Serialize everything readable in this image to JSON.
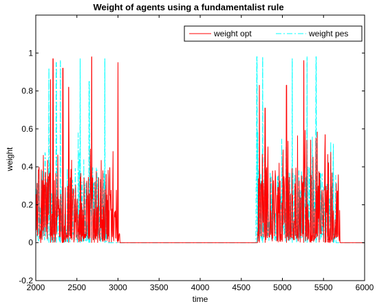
{
  "chart_data": {
    "type": "line",
    "title": "Weight of agents using a fundamentalist rule",
    "xlabel": "time",
    "ylabel": "weight",
    "xlim": [
      2000,
      6000
    ],
    "ylim": [
      -0.2,
      1.2
    ],
    "xticks": [
      2000,
      2500,
      3000,
      3500,
      4000,
      4500,
      5000,
      5500,
      6000
    ],
    "yticks": [
      -0.2,
      0,
      0.2,
      0.4,
      0.6,
      0.8,
      1
    ],
    "ytick_labels": [
      "-0.2",
      "0",
      "0.2",
      "0.4",
      "0.6",
      "0.8",
      "1"
    ],
    "grid": false,
    "legend_position": "top-right",
    "series": [
      {
        "name": "weight opt",
        "color": "#ff0000",
        "style": "solid",
        "active_windows": [
          [
            2000,
            3020
          ],
          [
            4700,
            5700
          ]
        ],
        "peaks": [
          {
            "x": 2180,
            "y": 0.86
          },
          {
            "x": 2210,
            "y": 0.97
          },
          {
            "x": 2330,
            "y": 0.92
          },
          {
            "x": 2400,
            "y": 0.82
          },
          {
            "x": 2680,
            "y": 0.98
          },
          {
            "x": 3000,
            "y": 0.95
          },
          {
            "x": 4720,
            "y": 0.83
          },
          {
            "x": 4790,
            "y": 0.71
          },
          {
            "x": 5050,
            "y": 0.83
          },
          {
            "x": 5260,
            "y": 0.96
          },
          {
            "x": 5520,
            "y": 0.57
          },
          {
            "x": 5560,
            "y": 0.42
          }
        ]
      },
      {
        "name": "weight pes",
        "color": "#00ffff",
        "style": "dashdot",
        "active_windows": [
          [
            2000,
            2860
          ],
          [
            4680,
            5650
          ]
        ],
        "peaks": [
          {
            "x": 2160,
            "y": 0.92
          },
          {
            "x": 2250,
            "y": 0.95
          },
          {
            "x": 2300,
            "y": 0.96
          },
          {
            "x": 2540,
            "y": 0.97
          },
          {
            "x": 2650,
            "y": 0.85
          },
          {
            "x": 2840,
            "y": 0.97
          },
          {
            "x": 4690,
            "y": 0.98
          },
          {
            "x": 4760,
            "y": 0.98
          },
          {
            "x": 5120,
            "y": 0.97
          },
          {
            "x": 5300,
            "y": 0.98
          },
          {
            "x": 5410,
            "y": 0.98
          },
          {
            "x": 5620,
            "y": 0.52
          }
        ]
      }
    ]
  }
}
